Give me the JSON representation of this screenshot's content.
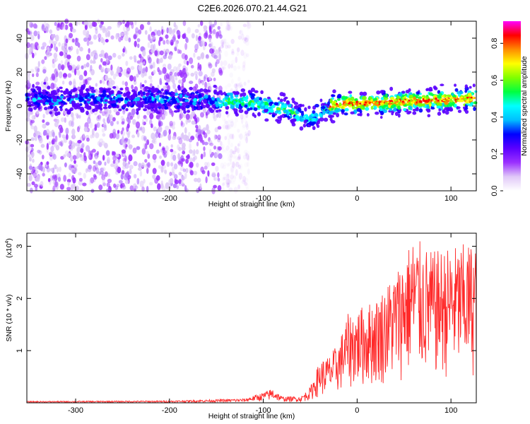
{
  "figure": {
    "title": "C2E6.2026.070.21.44.G21"
  },
  "chart_data": [
    {
      "type": "heatmap",
      "xlabel": "Height of straight line (km)",
      "ylabel": "Frequency (Hz)",
      "xlim": [
        -352,
        127
      ],
      "ylim": [
        -50,
        50
      ],
      "xticks": [
        -300,
        -200,
        -100,
        0,
        100
      ],
      "yticks": [
        -40,
        -20,
        0,
        20,
        40
      ],
      "colorbar": {
        "label": "Normalized spectral amplitude",
        "range": [
          0,
          0.92
        ],
        "ticks": [
          "0.0",
          "0.2",
          "0.4",
          "0.6",
          "0.8"
        ],
        "colormap": [
          "#ffffff",
          "#e0c8f8",
          "#9b30ff",
          "#5b00ff",
          "#0000ff",
          "#00bfff",
          "#00ffff",
          "#00ff40",
          "#7fff00",
          "#ffff00",
          "#ff8c00",
          "#ff0000",
          "#ff00ff"
        ]
      },
      "ridge_frequency_hz": {
        "x": [
          -352,
          -260,
          -150,
          -110,
          -90,
          -75,
          -62,
          -50,
          -42,
          -35,
          -25,
          -10,
          0,
          30,
          60,
          90,
          127
        ],
        "y": [
          4,
          4,
          3.5,
          2,
          -1,
          -2,
          -5,
          -8,
          -5,
          -2,
          0.5,
          1.5,
          1.5,
          2,
          3,
          3.5,
          4.5
        ]
      },
      "noise_region_km": [
        -352,
        -145
      ]
    },
    {
      "type": "line",
      "xlabel": "Height of straight line (km)",
      "ylabel": "SNR (10 * v/v)",
      "yscale_label": "(x10",
      "yscale_exp": "4",
      "xlim": [
        -352,
        127
      ],
      "ylim": [
        0,
        3.25
      ],
      "xticks": [
        -300,
        -200,
        -100,
        0,
        100
      ],
      "yticks": [
        1,
        2,
        3
      ],
      "line_color": "#ff2a2a",
      "envelope": {
        "x": [
          -352,
          -200,
          -120,
          -100,
          -90,
          -80,
          -60,
          -50,
          -40,
          -30,
          -20,
          -10,
          0,
          20,
          40,
          60,
          80,
          100,
          127
        ],
        "y_x1e4": [
          0.03,
          0.04,
          0.08,
          0.2,
          0.28,
          0.12,
          0.12,
          0.3,
          0.8,
          0.9,
          1.15,
          1.7,
          1.8,
          2.0,
          2.5,
          3.2,
          2.9,
          3.0,
          3.1
        ]
      }
    }
  ]
}
